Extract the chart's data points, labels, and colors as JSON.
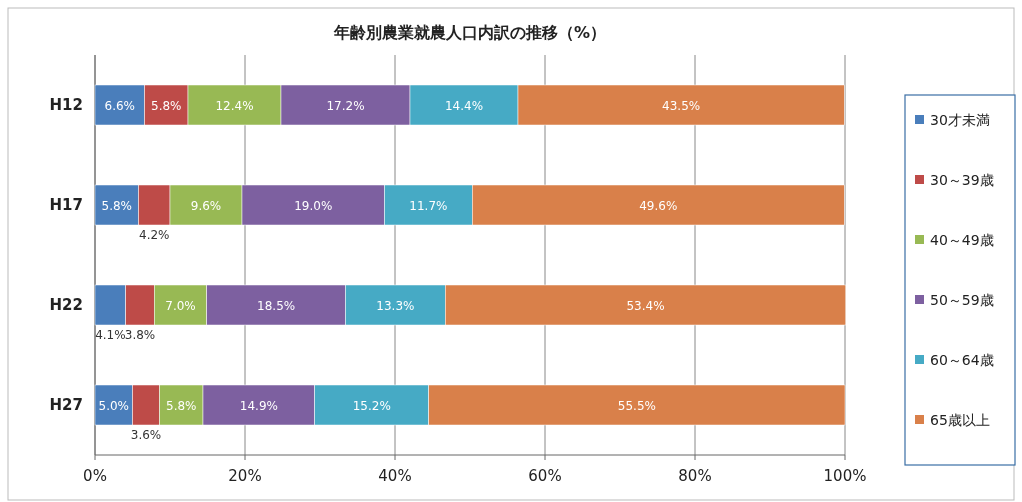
{
  "chart_data": {
    "type": "bar",
    "orientation": "horizontal",
    "stacked": true,
    "title": "年齢別農業就農人口内訳の推移（%）",
    "categories": [
      "H12",
      "H17",
      "H22",
      "H27"
    ],
    "series": [
      {
        "name": "30才未満",
        "color": "#4a7ebb",
        "values": [
          6.6,
          5.8,
          4.1,
          5.0
        ],
        "value_labels": [
          "6.6%",
          "5.8%",
          "4.1%",
          "5.0%"
        ]
      },
      {
        "name": "30～39歳",
        "color": "#be4b48",
        "values": [
          5.8,
          4.2,
          3.8,
          3.6
        ],
        "value_labels": [
          "5.8%",
          "4.2%",
          "3.8%",
          "3.6%"
        ]
      },
      {
        "name": "40～49歳",
        "color": "#98b954",
        "values": [
          12.4,
          9.6,
          7.0,
          5.8
        ],
        "value_labels": [
          "12.4%",
          "9.6%",
          "7.0%",
          "5.8%"
        ]
      },
      {
        "name": "50～59歳",
        "color": "#7d60a0",
        "values": [
          17.2,
          19.0,
          18.5,
          14.9
        ],
        "value_labels": [
          "17.2%",
          "19.0%",
          "18.5%",
          "14.9%"
        ]
      },
      {
        "name": "60～64歳",
        "color": "#46aac5",
        "values": [
          14.4,
          11.7,
          13.3,
          15.2
        ],
        "value_labels": [
          "14.4%",
          "11.7%",
          "13.3%",
          "15.2%"
        ]
      },
      {
        "name": "65歳以上",
        "color": "#d9804a",
        "values": [
          43.5,
          49.6,
          53.4,
          55.5
        ],
        "value_labels": [
          "43.5%",
          "49.6%",
          "53.4%",
          "55.5%"
        ]
      }
    ],
    "xlim": [
      0,
      100
    ],
    "xticks": [
      {
        "value": 0,
        "label": "0%"
      },
      {
        "value": 20,
        "label": "20%"
      },
      {
        "value": 40,
        "label": "40%"
      },
      {
        "value": 60,
        "label": "60%"
      },
      {
        "value": 80,
        "label": "80%"
      },
      {
        "value": 100,
        "label": "100%"
      }
    ],
    "grid": "x",
    "legend": "right"
  }
}
